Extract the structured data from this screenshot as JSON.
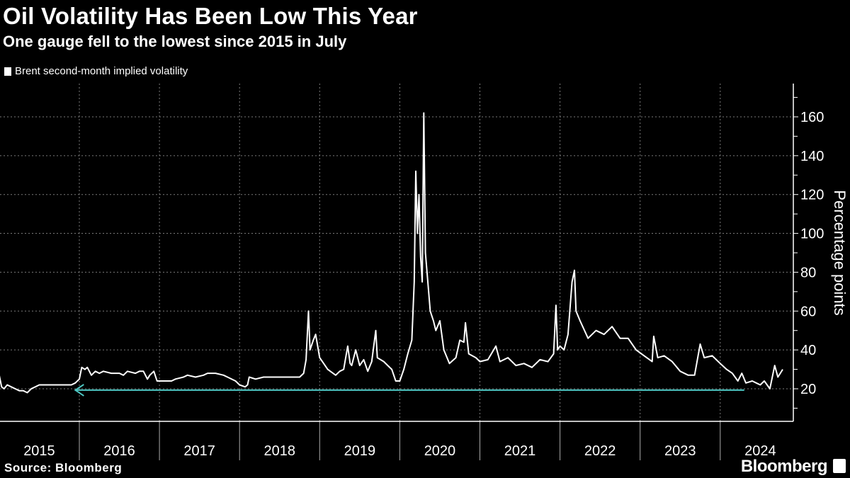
{
  "header": {
    "title": "Oil Volatility Has Been Low This Year",
    "subtitle": "One gauge fell to the lowest since 2015 in July"
  },
  "footer": {
    "source": "Source: Bloomberg",
    "brand": "Bloomberg"
  },
  "colors": {
    "line": "#ffffff",
    "reference": "#4ec8c4",
    "grid": "#7a7a7a",
    "background": "#000000"
  },
  "chart_data": {
    "type": "line",
    "title": "Oil Volatility Has Been Low This Year",
    "subtitle": "One gauge fell to the lowest since 2015 in July",
    "xlabel": "",
    "ylabel": "Percentage points",
    "xlim": [
      2015.0,
      2024.95
    ],
    "ylim": [
      3,
      173
    ],
    "y_ticks": [
      20,
      40,
      60,
      80,
      100,
      120,
      140,
      160
    ],
    "y_minor_step": 10,
    "x_tick_labels": [
      "2015",
      "2016",
      "2017",
      "2018",
      "2019",
      "2020",
      "2021",
      "2022",
      "2023",
      "2024"
    ],
    "grid": true,
    "legend": {
      "placement": "top-left",
      "entries": [
        "Brent second-month implied volatility"
      ]
    },
    "reference_line": {
      "value": 19.3,
      "from": 2024.3,
      "to": 2015.95,
      "arrow": "left"
    },
    "series": [
      {
        "name": "Brent second-month implied volatility",
        "x": [
          2015.0,
          2015.03,
          2015.06,
          2015.1,
          2015.15,
          2015.2,
          2015.25,
          2015.3,
          2015.35,
          2015.4,
          2015.45,
          2015.5,
          2015.55,
          2015.6,
          2015.7,
          2015.8,
          2015.9,
          2015.95,
          2016.0,
          2016.03,
          2016.07,
          2016.1,
          2016.15,
          2016.2,
          2016.25,
          2016.3,
          2016.4,
          2016.5,
          2016.55,
          2016.6,
          2016.7,
          2016.75,
          2016.8,
          2016.85,
          2016.88,
          2016.93,
          2016.97,
          2017.05,
          2017.15,
          2017.2,
          2017.3,
          2017.35,
          2017.45,
          2017.55,
          2017.6,
          2017.7,
          2017.8,
          2017.85,
          2017.95,
          2018.0,
          2018.07,
          2018.1,
          2018.12,
          2018.2,
          2018.3,
          2018.35,
          2018.45,
          2018.5,
          2018.6,
          2018.75,
          2018.8,
          2018.83,
          2018.86,
          2018.88,
          2018.92,
          2018.95,
          2019.0,
          2019.05,
          2019.1,
          2019.2,
          2019.25,
          2019.3,
          2019.35,
          2019.38,
          2019.4,
          2019.45,
          2019.5,
          2019.55,
          2019.6,
          2019.65,
          2019.7,
          2019.72,
          2019.8,
          2019.85,
          2019.9,
          2019.95,
          2020.0,
          2020.05,
          2020.1,
          2020.15,
          2020.18,
          2020.2,
          2020.22,
          2020.24,
          2020.26,
          2020.28,
          2020.3,
          2020.32,
          2020.35,
          2020.38,
          2020.42,
          2020.45,
          2020.5,
          2020.55,
          2020.62,
          2020.7,
          2020.75,
          2020.8,
          2020.82,
          2020.86,
          2020.95,
          2021.0,
          2021.1,
          2021.2,
          2021.25,
          2021.35,
          2021.45,
          2021.55,
          2021.65,
          2021.75,
          2021.85,
          2021.92,
          2021.95,
          2021.97,
          2022.0,
          2022.05,
          2022.1,
          2022.15,
          2022.18,
          2022.2,
          2022.25,
          2022.35,
          2022.45,
          2022.55,
          2022.65,
          2022.75,
          2022.85,
          2022.95,
          2023.05,
          2023.15,
          2023.17,
          2023.22,
          2023.3,
          2023.4,
          2023.5,
          2023.6,
          2023.68,
          2023.75,
          2023.8,
          2023.9,
          2024.0,
          2024.08,
          2024.15,
          2024.22,
          2024.27,
          2024.32,
          2024.4,
          2024.45,
          2024.5,
          2024.55,
          2024.62,
          2024.68,
          2024.72,
          2024.75,
          2024.78
        ],
        "y": [
          27,
          21,
          20,
          22,
          21,
          20,
          19,
          19,
          18,
          20,
          21,
          22,
          22,
          22,
          22,
          22,
          22,
          23,
          25,
          31,
          30,
          31,
          27,
          29,
          28,
          29,
          28,
          28,
          27,
          29,
          28,
          29,
          29,
          25,
          27,
          29,
          24,
          24,
          24,
          25,
          26,
          27,
          26,
          27,
          28,
          28,
          27,
          26,
          24,
          22,
          21,
          22,
          26,
          25,
          26,
          26,
          26,
          26,
          26,
          26,
          28,
          35,
          60,
          40,
          45,
          48,
          36,
          33,
          30,
          27,
          29,
          30,
          42,
          33,
          32,
          40,
          32,
          35,
          29,
          34,
          50,
          36,
          34,
          32,
          30,
          24,
          24,
          30,
          38,
          45,
          75,
          132,
          100,
          120,
          88,
          75,
          162,
          90,
          75,
          60,
          55,
          50,
          55,
          40,
          33,
          36,
          45,
          44,
          54,
          38,
          36,
          34,
          35,
          42,
          34,
          36,
          32,
          33,
          31,
          35,
          34,
          38,
          63,
          40,
          42,
          40,
          48,
          75,
          81,
          60,
          55,
          46,
          50,
          48,
          52,
          46,
          46,
          40,
          37,
          34,
          47,
          36,
          37,
          34,
          29,
          27,
          27,
          43,
          36,
          37,
          33,
          30,
          28,
          24,
          28,
          23,
          24,
          23,
          22,
          24,
          20,
          32,
          26,
          28,
          30
        ]
      }
    ]
  }
}
